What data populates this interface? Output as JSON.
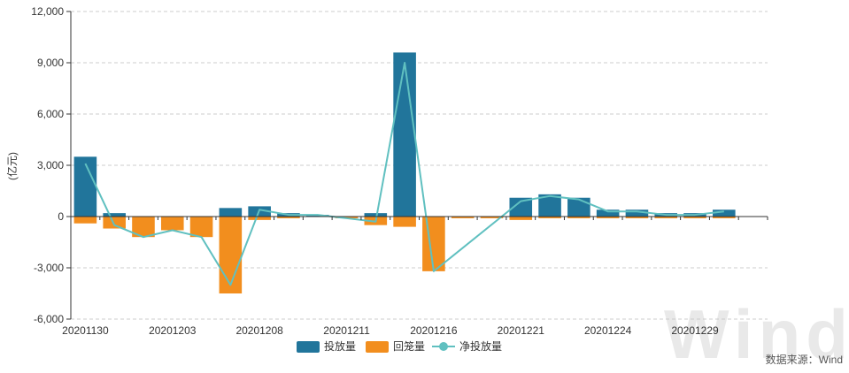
{
  "chart_data": {
    "type": "bar",
    "ylabel": "(亿元)",
    "ylim": [
      -6000,
      12000
    ],
    "yticks": [
      -6000,
      -3000,
      0,
      3000,
      6000,
      9000,
      12000
    ],
    "ytick_labels": [
      "-6,000",
      "-3,000",
      "0",
      "3,000",
      "6,000",
      "9,000",
      "12,000"
    ],
    "grid": true,
    "legend_position": "bottom-center",
    "x": [
      "20201130",
      "20201201",
      "20201202",
      "20201203",
      "20201204",
      "20201207",
      "20201208",
      "20201209",
      "20201210",
      "20201211",
      "20201214",
      "20201215",
      "20201216",
      "20201217",
      "20201218",
      "20201221",
      "20201222",
      "20201223",
      "20201224",
      "20201225",
      "20201228",
      "20201229",
      "20201230",
      "20201231"
    ],
    "x_tick_labels": [
      {
        "index": 0,
        "label": "20201130"
      },
      {
        "index": 3,
        "label": "20201203"
      },
      {
        "index": 6,
        "label": "20201208"
      },
      {
        "index": 9,
        "label": "20201211"
      },
      {
        "index": 12,
        "label": "20201216"
      },
      {
        "index": 15,
        "label": "20201221"
      },
      {
        "index": 18,
        "label": "20201224"
      },
      {
        "index": 21,
        "label": "20201229"
      }
    ],
    "series": [
      {
        "name": "投放量",
        "kind": "bar",
        "color": "#21759b",
        "values": [
          3500,
          200,
          0,
          0,
          0,
          500,
          600,
          200,
          100,
          0,
          200,
          9600,
          0,
          0,
          0,
          1100,
          1300,
          1100,
          400,
          400,
          200,
          200,
          400,
          0
        ]
      },
      {
        "name": "回笼量",
        "kind": "bar",
        "color": "#f28e1e",
        "values": [
          -400,
          -700,
          -1200,
          -800,
          -1200,
          -4500,
          -200,
          -100,
          0,
          -100,
          -500,
          -600,
          -3200,
          -100,
          -100,
          -200,
          -100,
          -100,
          -100,
          -100,
          -100,
          -100,
          -100,
          0
        ]
      },
      {
        "name": "净投放量",
        "kind": "line",
        "color": "#60c0c0",
        "values": [
          3100,
          -500,
          -1200,
          -800,
          -1200,
          -4000,
          400,
          100,
          100,
          -100,
          -300,
          9000,
          -3200,
          null,
          null,
          900,
          1200,
          1000,
          300,
          300,
          100,
          100,
          300,
          null
        ]
      }
    ]
  },
  "source_text": "数据来源：Wind",
  "watermark_text": "Wind"
}
